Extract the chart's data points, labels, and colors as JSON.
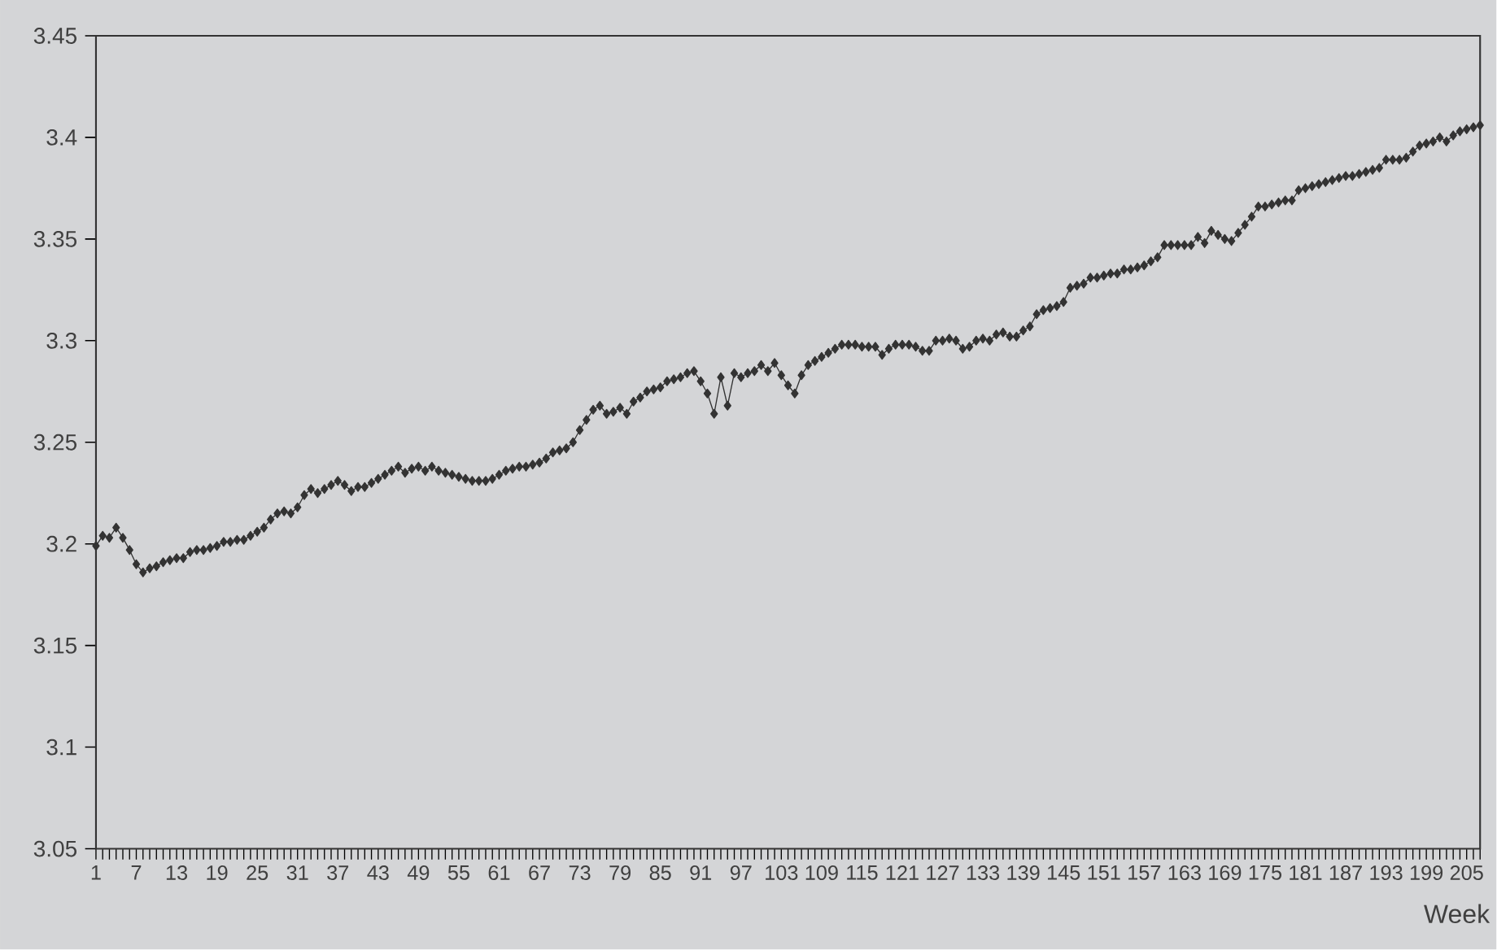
{
  "chart_data": {
    "type": "line",
    "xlabel": "Week",
    "color": "#333333",
    "marker": "diamond",
    "line_style": "solid",
    "grid": false,
    "ylim": [
      3.05,
      3.45
    ],
    "yticks": [
      3.05,
      3.1,
      3.15,
      3.2,
      3.25,
      3.3,
      3.35,
      3.4,
      3.45
    ],
    "categories": [
      "1",
      null,
      null,
      null,
      null,
      null,
      "7",
      null,
      null,
      null,
      null,
      null,
      "13",
      null,
      null,
      null,
      null,
      null,
      "19",
      null,
      null,
      null,
      null,
      null,
      "25",
      null,
      null,
      null,
      null,
      null,
      "31",
      null,
      null,
      null,
      null,
      null,
      "37",
      null,
      null,
      null,
      null,
      null,
      "43",
      null,
      null,
      null,
      null,
      null,
      "49",
      null,
      null,
      null,
      null,
      null,
      "55",
      null,
      null,
      null,
      null,
      null,
      "61",
      null,
      null,
      null,
      null,
      null,
      "67",
      null,
      null,
      null,
      null,
      null,
      "73",
      null,
      null,
      null,
      null,
      null,
      "79",
      null,
      null,
      null,
      null,
      null,
      "85",
      null,
      null,
      null,
      null,
      null,
      "91",
      null,
      null,
      null,
      null,
      null,
      "97",
      null,
      null,
      null,
      null,
      null,
      "103",
      null,
      null,
      null,
      null,
      null,
      "109",
      null,
      null,
      null,
      null,
      null,
      "115",
      null,
      null,
      null,
      null,
      null,
      "121",
      null,
      null,
      null,
      null,
      null,
      "127",
      null,
      null,
      null,
      null,
      null,
      "133",
      null,
      null,
      null,
      null,
      null,
      "139",
      null,
      null,
      null,
      null,
      null,
      "145",
      null,
      null,
      null,
      null,
      null,
      "151",
      null,
      null,
      null,
      null,
      null,
      "157",
      null,
      null,
      null,
      null,
      null,
      "163",
      null,
      null,
      null,
      null,
      null,
      "169",
      null,
      null,
      null,
      null,
      null,
      "175",
      null,
      null,
      null,
      null,
      null,
      "181",
      null,
      null,
      null,
      null,
      null,
      "187",
      null,
      null,
      null,
      null,
      null,
      "193",
      null,
      null,
      null,
      null,
      null,
      "199",
      null,
      null,
      null,
      null,
      null,
      "205",
      null,
      null
    ],
    "values": [
      3.199,
      3.204,
      3.203,
      3.208,
      3.203,
      3.197,
      3.19,
      3.186,
      3.188,
      3.189,
      3.191,
      3.192,
      3.193,
      3.193,
      3.196,
      3.197,
      3.197,
      3.198,
      3.199,
      3.201,
      3.201,
      3.202,
      3.202,
      3.204,
      3.206,
      3.208,
      3.212,
      3.215,
      3.216,
      3.215,
      3.218,
      3.224,
      3.227,
      3.225,
      3.227,
      3.229,
      3.231,
      3.229,
      3.226,
      3.228,
      3.228,
      3.23,
      3.232,
      3.234,
      3.236,
      3.238,
      3.235,
      3.237,
      3.238,
      3.236,
      3.238,
      3.236,
      3.235,
      3.234,
      3.233,
      3.232,
      3.231,
      3.231,
      3.231,
      3.232,
      3.234,
      3.236,
      3.237,
      3.238,
      3.238,
      3.239,
      3.24,
      3.242,
      3.245,
      3.246,
      3.247,
      3.25,
      3.256,
      3.261,
      3.266,
      3.268,
      3.264,
      3.265,
      3.267,
      3.264,
      3.27,
      3.272,
      3.275,
      3.276,
      3.277,
      3.28,
      3.281,
      3.282,
      3.284,
      3.285,
      3.28,
      3.274,
      3.264,
      3.282,
      3.268,
      3.284,
      3.282,
      3.284,
      3.285,
      3.288,
      3.285,
      3.289,
      3.283,
      3.278,
      3.274,
      3.283,
      3.288,
      3.29,
      3.292,
      3.294,
      3.296,
      3.298,
      3.298,
      3.298,
      3.297,
      3.297,
      3.297,
      3.293,
      3.296,
      3.298,
      3.298,
      3.298,
      3.297,
      3.295,
      3.295,
      3.3,
      3.3,
      3.301,
      3.3,
      3.296,
      3.297,
      3.3,
      3.301,
      3.3,
      3.303,
      3.304,
      3.302,
      3.302,
      3.305,
      3.307,
      3.313,
      3.315,
      3.316,
      3.317,
      3.319,
      3.326,
      3.327,
      3.328,
      3.331,
      3.331,
      3.332,
      3.333,
      3.333,
      3.335,
      3.335,
      3.336,
      3.337,
      3.339,
      3.341,
      3.347,
      3.347,
      3.347,
      3.347,
      3.347,
      3.351,
      3.348,
      3.354,
      3.352,
      3.35,
      3.349,
      3.353,
      3.357,
      3.361,
      3.366,
      3.366,
      3.367,
      3.368,
      3.369,
      3.369,
      3.374,
      3.375,
      3.376,
      3.377,
      3.378,
      3.379,
      3.38,
      3.381,
      3.381,
      3.382,
      3.383,
      3.384,
      3.385,
      3.389,
      3.389,
      3.389,
      3.39,
      3.393,
      3.396,
      3.397,
      3.398,
      3.4,
      3.398,
      3.401,
      3.403,
      3.404,
      3.405,
      3.406
    ]
  }
}
